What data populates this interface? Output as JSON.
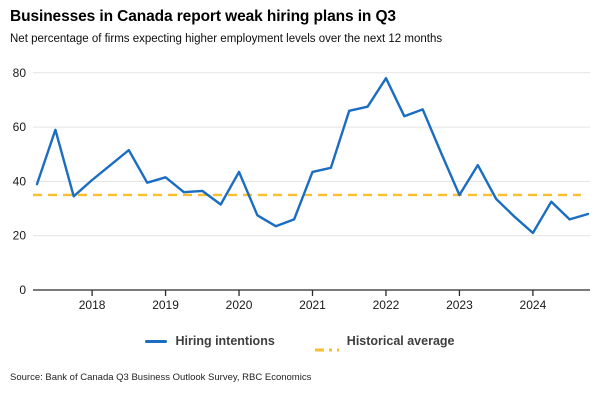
{
  "header": {
    "title": "Businesses in Canada report weak hiring plans in Q3",
    "subtitle": "Net percentage of firms expecting higher employment levels over the next 12 months"
  },
  "footer": {
    "source": "Source: Bank of Canada Q3 Business Outlook Survey, RBC Economics"
  },
  "colors": {
    "line_blue": "#1b6dc1",
    "dash_yellow": "#fdbd30",
    "gridline": "#e3e3e3",
    "axis": "#2b2b2b",
    "tick_text": "#1a1a1a"
  },
  "chart_data": {
    "type": "line",
    "title": "Businesses in Canada report weak hiring plans in Q3",
    "subtitle": "Net percentage of firms expecting higher employment levels over the next 12 months",
    "xlabel": "",
    "ylabel": "Net percentage of firms",
    "ylim": [
      0,
      80
    ],
    "yticks": [
      0,
      20,
      40,
      60,
      80
    ],
    "x_tick_labels": [
      "2018",
      "2019",
      "2020",
      "2021",
      "2022",
      "2023",
      "2024"
    ],
    "grid": "horizontal",
    "legend_position": "bottom",
    "x": [
      "2017Q1",
      "2017Q2",
      "2017Q3",
      "2017Q4",
      "2018Q1",
      "2018Q2",
      "2018Q3",
      "2018Q4",
      "2019Q1",
      "2019Q2",
      "2019Q3",
      "2019Q4",
      "2020Q1",
      "2020Q2",
      "2020Q3",
      "2020Q4",
      "2021Q1",
      "2021Q2",
      "2021Q3",
      "2021Q4",
      "2022Q1",
      "2022Q2",
      "2022Q3",
      "2022Q4",
      "2023Q1",
      "2023Q2",
      "2023Q3",
      "2023Q4",
      "2024Q1",
      "2024Q2",
      "2024Q3"
    ],
    "series": [
      {
        "name": "Hiring intentions",
        "style": "solid",
        "color": "#1b6dc1",
        "values": [
          39,
          59,
          34.5,
          40.5,
          46,
          51.5,
          39.5,
          41.5,
          36,
          36.5,
          31.5,
          43.5,
          27.5,
          23.5,
          26,
          43.5,
          45,
          66,
          67.5,
          78,
          64,
          66.5,
          50.5,
          35,
          46,
          33.5,
          27,
          21,
          32.5,
          26,
          28
        ]
      },
      {
        "name": "Historical average",
        "style": "dashed",
        "color": "#fdbd30",
        "constant_value": 35
      }
    ]
  }
}
